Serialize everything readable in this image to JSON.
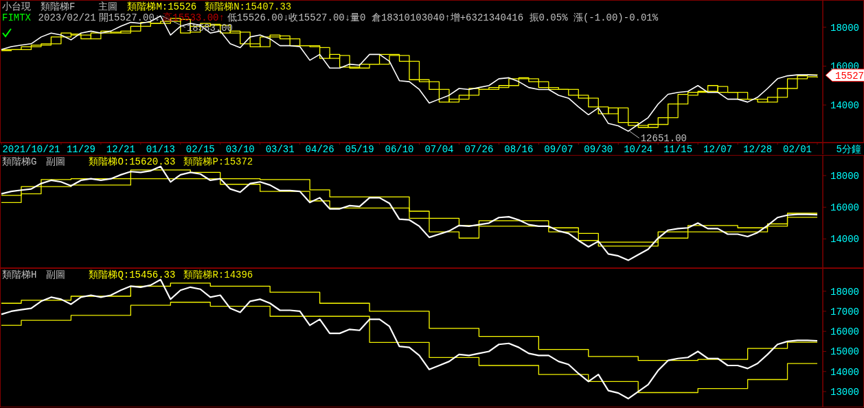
{
  "chart_data": [
    {
      "type": "line",
      "title": "小台現",
      "subtitle": "類階梯F",
      "categories": [
        null,
        null,
        null,
        "2021/10/21",
        null,
        null,
        null,
        null,
        "11/29",
        null,
        null,
        null,
        "12/21",
        null,
        null,
        null,
        "01/13",
        null,
        null,
        null,
        "02/15",
        null,
        null,
        null,
        "03/10",
        null,
        null,
        null,
        "03/31",
        null,
        null,
        null,
        "04/26",
        null,
        null,
        null,
        "05/19",
        null,
        null,
        null,
        "06/10",
        null,
        null,
        null,
        "07/04",
        null,
        null,
        null,
        "07/26",
        null,
        null,
        null,
        "08/16",
        null,
        null,
        null,
        "09/07",
        null,
        null,
        null,
        "09/30",
        null,
        null,
        null,
        "10/24",
        null,
        null,
        null,
        "11/15",
        null,
        null,
        null,
        "12/07",
        null,
        null,
        null,
        "12/28",
        null,
        null,
        null,
        "02/01",
        null,
        null
      ],
      "series": [
        {
          "type": "line",
          "color": "#ffffff",
          "values": [
            16850,
            17000,
            17080,
            17150,
            17500,
            17700,
            17600,
            17350,
            17700,
            17800,
            17700,
            17800,
            18050,
            18250,
            18200,
            18300,
            18580,
            17600,
            18050,
            18200,
            18100,
            17700,
            17800,
            17150,
            16950,
            17500,
            17600,
            17400,
            17050,
            17050,
            17000,
            16300,
            16600,
            15900,
            15900,
            16100,
            16050,
            16600,
            16600,
            16250,
            15250,
            15200,
            14800,
            14100,
            14300,
            14500,
            14850,
            14800,
            14900,
            15000,
            15350,
            15400,
            15200,
            14900,
            14800,
            14800,
            14500,
            14350,
            13900,
            13500,
            13850,
            13050,
            12930,
            12650,
            13000,
            13350,
            14050,
            14550,
            14650,
            14700,
            15000,
            14650,
            14650,
            14300,
            14300,
            14150,
            14400,
            14850,
            15350,
            15500,
            15550,
            15550,
            15530
          ]
        },
        {
          "type": "step",
          "name": "類階梯M:15526",
          "color": "#ffff00",
          "values": [
            16850,
            16850,
            17000,
            17080,
            17150,
            17500,
            17700,
            17600,
            17400,
            17700,
            17800,
            17700,
            17800,
            18050,
            18250,
            18200,
            18300,
            18450,
            17700,
            18050,
            18200,
            18100,
            17700,
            17800,
            17150,
            17000,
            17500,
            17600,
            17400,
            17050,
            17050,
            17000,
            16400,
            16600,
            15950,
            15900,
            16100,
            16100,
            16600,
            16600,
            16250,
            15300,
            15200,
            14800,
            14150,
            14300,
            14500,
            14850,
            14800,
            14900,
            15000,
            15350,
            15400,
            15200,
            14900,
            14800,
            14800,
            14500,
            14350,
            13900,
            13550,
            13850,
            13100,
            12950,
            12850,
            13000,
            13350,
            14050,
            14550,
            14650,
            14700,
            15000,
            14650,
            14650,
            14300,
            14300,
            14150,
            14400,
            14850,
            15350,
            15500,
            15550,
            15530
          ]
        },
        {
          "type": "step",
          "name": "類階梯N:15407.33",
          "color": "#f0f000",
          "values": [
            16800,
            16850,
            16850,
            17000,
            17080,
            17150,
            17500,
            17650,
            17600,
            17400,
            17700,
            17750,
            17700,
            17800,
            18050,
            18200,
            18200,
            18300,
            18400,
            17750,
            18050,
            18150,
            18100,
            17700,
            17750,
            17150,
            17000,
            17500,
            17550,
            17400,
            17050,
            17050,
            16950,
            16400,
            16550,
            15950,
            15900,
            16100,
            16100,
            16550,
            16550,
            16250,
            15300,
            15200,
            14800,
            14150,
            14300,
            14500,
            14800,
            14800,
            14900,
            15000,
            15350,
            15350,
            15200,
            14900,
            14800,
            14800,
            14500,
            14350,
            13900,
            13550,
            13850,
            13100,
            12950,
            12850,
            13000,
            13350,
            14050,
            14500,
            14650,
            14700,
            14950,
            14650,
            14650,
            14300,
            14300,
            14150,
            14400,
            14850,
            15350,
            15450,
            15410
          ]
        }
      ],
      "ylim": [
        12100,
        19400
      ],
      "yticks": [
        14000,
        16000,
        18000
      ],
      "legend": "top left",
      "xlabel": "5分鐘",
      "annotations": [
        "主圖",
        "FIMTX",
        "2023/02/21",
        "開15527.00↓",
        "高15533.00↑",
        "低15526.00↓收15527.00↓量0 倉18310103040↑增+6321340416 振0.05% 漲(-1.00)-0.01%",
        "18583.00",
        "12651.00",
        "15527"
      ]
    },
    {
      "type": "line",
      "title": "類階梯G",
      "subtitle": "副圖",
      "categories": [
        null,
        null,
        null,
        null,
        null,
        null,
        null,
        null,
        null,
        null,
        null,
        null,
        null,
        null,
        null,
        null,
        null,
        null,
        null,
        null,
        null,
        null,
        null,
        null,
        null,
        null,
        null,
        null,
        null,
        null,
        null,
        null,
        null,
        null,
        null,
        null,
        null,
        null,
        null,
        null,
        null,
        null,
        null,
        null,
        null,
        null,
        null,
        null,
        null,
        null,
        null,
        null,
        null,
        null,
        null,
        null,
        null,
        null,
        null,
        null,
        null,
        null,
        null,
        null,
        null,
        null,
        null,
        null,
        null,
        null,
        null,
        null,
        null,
        null,
        null,
        null,
        null,
        null,
        null,
        null,
        null,
        null,
        null
      ],
      "series": [
        {
          "type": "line",
          "color": "#ffffff",
          "values": [
            16850,
            17000,
            17080,
            17150,
            17500,
            17700,
            17600,
            17350,
            17700,
            17800,
            17700,
            17800,
            18050,
            18250,
            18200,
            18300,
            18580,
            17600,
            18050,
            18200,
            18100,
            17700,
            17800,
            17150,
            16950,
            17500,
            17600,
            17400,
            17050,
            17050,
            17000,
            16300,
            16600,
            15900,
            15900,
            16100,
            16050,
            16600,
            16600,
            16250,
            15250,
            15200,
            14800,
            14100,
            14300,
            14500,
            14850,
            14800,
            14900,
            15000,
            15350,
            15400,
            15200,
            14900,
            14800,
            14800,
            14500,
            14350,
            13900,
            13500,
            13850,
            13050,
            12930,
            12650,
            13000,
            13350,
            14050,
            14550,
            14650,
            14700,
            15000,
            14650,
            14650,
            14300,
            14300,
            14150,
            14400,
            14850,
            15350,
            15500,
            15550,
            15550,
            15530
          ]
        },
        {
          "type": "step",
          "name": "類階梯O:15620.33",
          "color": "#ffff00",
          "values": [
            16750,
            16750,
            17300,
            17300,
            17750,
            17750,
            17750,
            17800,
            17800,
            17800,
            17800,
            17800,
            17800,
            18350,
            18350,
            18350,
            18350,
            18350,
            18350,
            18200,
            18200,
            18200,
            17800,
            17800,
            17800,
            17800,
            17750,
            17750,
            17750,
            17750,
            17750,
            17100,
            17100,
            16650,
            16650,
            16650,
            16650,
            16650,
            16650,
            16650,
            16650,
            15750,
            15750,
            15300,
            15300,
            15300,
            14850,
            14850,
            15150,
            15150,
            15150,
            15150,
            15150,
            15150,
            15150,
            14700,
            14700,
            14700,
            14350,
            14350,
            13800,
            13800,
            13800,
            13800,
            13800,
            13800,
            14450,
            14450,
            14450,
            14850,
            14850,
            14850,
            14850,
            14850,
            14700,
            14700,
            14700,
            14950,
            14950,
            15620,
            15620,
            15620,
            15620
          ]
        },
        {
          "type": "step",
          "name": "類階梯P:15372",
          "color": "#f0f000",
          "values": [
            16300,
            16300,
            16850,
            16850,
            17300,
            17300,
            17300,
            17400,
            17400,
            17400,
            17400,
            17400,
            17400,
            17800,
            17800,
            17800,
            17800,
            17800,
            17800,
            17800,
            17800,
            17800,
            17450,
            17450,
            17450,
            17450,
            17000,
            17000,
            17000,
            17000,
            17000,
            16400,
            16400,
            15950,
            15950,
            15950,
            15950,
            15950,
            15950,
            15950,
            15950,
            15300,
            15300,
            14450,
            14450,
            14450,
            14050,
            14050,
            14800,
            14800,
            14800,
            14800,
            14800,
            14800,
            14800,
            14450,
            14450,
            14450,
            13900,
            13900,
            13550,
            13550,
            13550,
            13550,
            13550,
            13550,
            14050,
            14050,
            14050,
            14450,
            14450,
            14450,
            14450,
            14450,
            14450,
            14450,
            14450,
            14800,
            14800,
            15370,
            15370,
            15370,
            15370
          ]
        }
      ],
      "ylim": [
        12200,
        19300
      ],
      "yticks": [
        14000,
        16000,
        18000
      ],
      "legend": "top left",
      "tick_labels": "y"
    },
    {
      "type": "line",
      "title": "類階梯H",
      "subtitle": "副圖",
      "categories": [
        null,
        null,
        null,
        null,
        null,
        null,
        null,
        null,
        null,
        null,
        null,
        null,
        null,
        null,
        null,
        null,
        null,
        null,
        null,
        null,
        null,
        null,
        null,
        null,
        null,
        null,
        null,
        null,
        null,
        null,
        null,
        null,
        null,
        null,
        null,
        null,
        null,
        null,
        null,
        null,
        null,
        null,
        null,
        null,
        null,
        null,
        null,
        null,
        null,
        null,
        null,
        null,
        null,
        null,
        null,
        null,
        null,
        null,
        null,
        null,
        null,
        null,
        null,
        null,
        null,
        null,
        null,
        null,
        null,
        null,
        null,
        null,
        null,
        null,
        null,
        null,
        null,
        null,
        null,
        null,
        null,
        null,
        null
      ],
      "series": [
        {
          "type": "line",
          "color": "#ffffff",
          "values": [
            16850,
            17000,
            17080,
            17150,
            17500,
            17700,
            17600,
            17350,
            17700,
            17800,
            17700,
            17800,
            18050,
            18250,
            18200,
            18300,
            18580,
            17600,
            18050,
            18200,
            18100,
            17700,
            17800,
            17150,
            16950,
            17500,
            17600,
            17400,
            17050,
            17050,
            17000,
            16300,
            16600,
            15900,
            15900,
            16100,
            16050,
            16600,
            16600,
            16250,
            15250,
            15200,
            14800,
            14100,
            14300,
            14500,
            14850,
            14800,
            14900,
            15000,
            15350,
            15400,
            15200,
            14900,
            14800,
            14800,
            14500,
            14350,
            13900,
            13500,
            13850,
            13050,
            12930,
            12650,
            13000,
            13350,
            14050,
            14550,
            14650,
            14700,
            15000,
            14650,
            14650,
            14300,
            14300,
            14150,
            14400,
            14850,
            15350,
            15500,
            15550,
            15550,
            15530
          ]
        },
        {
          "type": "step",
          "name": "類階梯Q:15456.33",
          "color": "#ffff00",
          "values": [
            17400,
            17400,
            17550,
            17550,
            17550,
            17550,
            17550,
            17750,
            17750,
            17750,
            17750,
            17750,
            17750,
            18250,
            18250,
            18250,
            18250,
            18400,
            18400,
            18400,
            18400,
            18250,
            18250,
            18250,
            18250,
            18250,
            18250,
            17950,
            17950,
            17950,
            17950,
            17950,
            17400,
            17400,
            17400,
            17400,
            17400,
            17000,
            17000,
            17000,
            17000,
            17000,
            17000,
            16150,
            16150,
            16150,
            16150,
            16150,
            15750,
            15750,
            15750,
            15750,
            15750,
            15750,
            15100,
            15100,
            15100,
            15100,
            15100,
            14750,
            14750,
            14750,
            14750,
            14750,
            14550,
            14550,
            14550,
            14550,
            14550,
            14550,
            14600,
            14600,
            14600,
            14600,
            14600,
            15150,
            15150,
            15150,
            15150,
            15460,
            15460,
            15460,
            15460
          ]
        },
        {
          "type": "step",
          "name": "類階梯R:14396",
          "color": "#f0f000",
          "values": [
            16300,
            16300,
            16550,
            16550,
            16550,
            16550,
            16550,
            16800,
            16800,
            16800,
            16800,
            16800,
            16800,
            17300,
            17300,
            17300,
            17300,
            17450,
            17450,
            17450,
            17450,
            17250,
            17250,
            17250,
            17250,
            17250,
            17250,
            16750,
            16750,
            16750,
            16750,
            16750,
            16750,
            16750,
            16750,
            16750,
            16750,
            15450,
            15450,
            15450,
            15450,
            15450,
            15450,
            14700,
            14700,
            14700,
            14700,
            14700,
            14300,
            14300,
            14300,
            14300,
            14300,
            14300,
            13850,
            13850,
            13850,
            13850,
            13850,
            13500,
            13500,
            13500,
            13500,
            13500,
            12950,
            12950,
            12950,
            12950,
            12950,
            12950,
            13150,
            13150,
            13150,
            13150,
            13150,
            13600,
            13600,
            13600,
            13600,
            14400,
            14400,
            14400,
            14400
          ]
        }
      ],
      "ylim": [
        12250,
        19150
      ],
      "yticks": [
        13000,
        14000,
        15000,
        16000,
        17000,
        18000
      ],
      "legend": "top left",
      "tick_labels": "y"
    }
  ]
}
